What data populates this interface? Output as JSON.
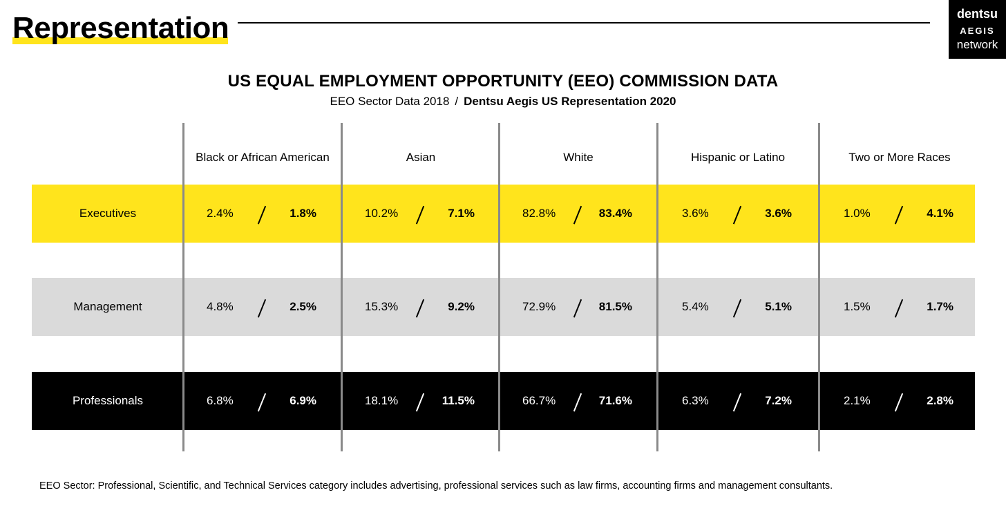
{
  "header": {
    "title": "Representation",
    "logo_lines": [
      "dentsu",
      "AEGIS",
      "network"
    ]
  },
  "heading": "US EQUAL EMPLOYMENT OPPORTUNITY (EEO) COMMISSION DATA",
  "subheading": {
    "left": "EEO Sector Data 2018",
    "separator": "/",
    "right": "Dentsu Aegis US Representation 2020"
  },
  "table": {
    "columns": [
      "Black or African American",
      "Asian",
      "White",
      "Hispanic or Latino",
      "Two or More Races"
    ],
    "rows": [
      {
        "label": "Executives",
        "cells": [
          {
            "eeo": "2.4%",
            "dentsu": "1.8%"
          },
          {
            "eeo": "10.2%",
            "dentsu": "7.1%"
          },
          {
            "eeo": "82.8%",
            "dentsu": "83.4%"
          },
          {
            "eeo": "3.6%",
            "dentsu": "3.6%"
          },
          {
            "eeo": "1.0%",
            "dentsu": "4.1%"
          }
        ]
      },
      {
        "label": "Management",
        "cells": [
          {
            "eeo": "4.8%",
            "dentsu": "2.5%"
          },
          {
            "eeo": "15.3%",
            "dentsu": "9.2%"
          },
          {
            "eeo": "72.9%",
            "dentsu": "81.5%"
          },
          {
            "eeo": "5.4%",
            "dentsu": "5.1%"
          },
          {
            "eeo": "1.5%",
            "dentsu": "1.7%"
          }
        ]
      },
      {
        "label": "Professionals",
        "cells": [
          {
            "eeo": "6.8%",
            "dentsu": "6.9%"
          },
          {
            "eeo": "18.1%",
            "dentsu": "11.5%"
          },
          {
            "eeo": "66.7%",
            "dentsu": "71.6%"
          },
          {
            "eeo": "6.3%",
            "dentsu": "7.2%"
          },
          {
            "eeo": "2.1%",
            "dentsu": "2.8%"
          }
        ]
      }
    ]
  },
  "colors": {
    "executives_band": "#ffe41c",
    "management_band": "#dadada",
    "professionals_band": "#000000",
    "divider": "#8a8a8a"
  },
  "footnote": "EEO Sector: Professional, Scientific, and Technical Services category includes advertising, professional services such as law firms, accounting firms and management consultants."
}
